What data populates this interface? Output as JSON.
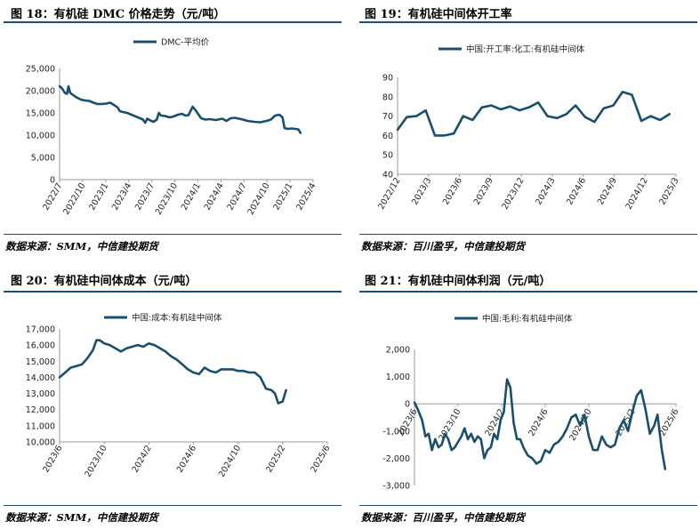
{
  "panels": [
    {
      "id": "p18",
      "title": "图 18：有机硅 DMC 价格走势（元/吨）",
      "source": "数据来源：SMM，中信建投期货"
    },
    {
      "id": "p19",
      "title": "图 19：有机硅中间体开工率",
      "source": "数据来源：百川盈孚，中信建投期货"
    },
    {
      "id": "p20",
      "title": "图 20：有机硅中间体成本（元/吨）",
      "source": "数据来源：SMM，中信建投期货"
    },
    {
      "id": "p21",
      "title": "图 21：有机硅中间体利润（元/吨）",
      "source": "数据来源：百川盈孚，中信建投期货"
    }
  ],
  "colors": {
    "series": "#1a4f6b",
    "rule": "#1f4e79",
    "axis": "#999999"
  },
  "chart_data": [
    {
      "type": "line",
      "series_name": "DMC-平均价",
      "yticks": [
        "25,000",
        "20,000",
        "15,000",
        "10,000",
        "5,000",
        "0"
      ],
      "ylim": [
        0,
        25000
      ],
      "xticks": [
        "2022/7",
        "2022/10",
        "2023/1",
        "2023/4",
        "2023/7",
        "2023/10",
        "2024/1",
        "2024/4",
        "2024/7",
        "2024/10",
        "2025/1",
        "2025/4"
      ],
      "xlim": [
        0,
        12
      ],
      "rotate_xticks": true,
      "points": [
        [
          0,
          21000
        ],
        [
          0.12,
          20500
        ],
        [
          0.25,
          19500
        ],
        [
          0.35,
          19300
        ],
        [
          0.42,
          21000
        ],
        [
          0.5,
          19500
        ],
        [
          0.65,
          19000
        ],
        [
          0.8,
          18500
        ],
        [
          1,
          18000
        ],
        [
          1.2,
          17800
        ],
        [
          1.4,
          17700
        ],
        [
          1.6,
          17300
        ],
        [
          1.8,
          17000
        ],
        [
          2,
          17000
        ],
        [
          2.2,
          17100
        ],
        [
          2.4,
          17300
        ],
        [
          2.6,
          16700
        ],
        [
          2.75,
          16200
        ],
        [
          2.85,
          15400
        ],
        [
          3,
          15200
        ],
        [
          3.2,
          15000
        ],
        [
          3.4,
          14600
        ],
        [
          3.6,
          14200
        ],
        [
          3.8,
          13800
        ],
        [
          3.95,
          13500
        ],
        [
          4.05,
          12800
        ],
        [
          4.15,
          13700
        ],
        [
          4.3,
          13300
        ],
        [
          4.45,
          13000
        ],
        [
          4.6,
          13500
        ],
        [
          4.7,
          15000
        ],
        [
          4.8,
          14400
        ],
        [
          5,
          14300
        ],
        [
          5.2,
          14000
        ],
        [
          5.4,
          14200
        ],
        [
          5.6,
          14600
        ],
        [
          5.8,
          14800
        ],
        [
          5.95,
          14400
        ],
        [
          6.1,
          14500
        ],
        [
          6.3,
          16400
        ],
        [
          6.45,
          15500
        ],
        [
          6.6,
          14500
        ],
        [
          6.7,
          13800
        ],
        [
          6.9,
          13500
        ],
        [
          7.1,
          13600
        ],
        [
          7.4,
          13400
        ],
        [
          7.7,
          13700
        ],
        [
          7.9,
          13200
        ],
        [
          8.1,
          13800
        ],
        [
          8.3,
          13900
        ],
        [
          8.6,
          13600
        ],
        [
          8.9,
          13200
        ],
        [
          9.2,
          13000
        ],
        [
          9.5,
          12900
        ],
        [
          9.8,
          13200
        ],
        [
          10,
          13500
        ],
        [
          10.2,
          14400
        ],
        [
          10.4,
          14600
        ],
        [
          10.55,
          14000
        ],
        [
          10.65,
          11600
        ],
        [
          10.8,
          11400
        ],
        [
          11,
          11500
        ],
        [
          11.15,
          11400
        ],
        [
          11.3,
          11300
        ],
        [
          11.4,
          10500
        ]
      ]
    },
    {
      "type": "line",
      "series_name": "中国:开工率:化工:有机硅中间体",
      "yticks": [
        "90",
        "80",
        "70",
        "60",
        "50",
        "40"
      ],
      "ylim": [
        40,
        90
      ],
      "xticks": [
        "2022/12",
        "2023/3",
        "2023/6",
        "2023/9",
        "2023/12",
        "2024/3",
        "2024/6",
        "2024/9",
        "2024/12",
        "2025/3"
      ],
      "xlim": [
        0,
        9.9
      ],
      "rotate_xticks": true,
      "points": [
        [
          0,
          63
        ],
        [
          0.33,
          69.5
        ],
        [
          0.67,
          70
        ],
        [
          1,
          73
        ],
        [
          1.33,
          60
        ],
        [
          1.67,
          60
        ],
        [
          2,
          61
        ],
        [
          2.33,
          70
        ],
        [
          2.67,
          68
        ],
        [
          3,
          74.5
        ],
        [
          3.33,
          75.5
        ],
        [
          3.67,
          73.5
        ],
        [
          4,
          75
        ],
        [
          4.33,
          73
        ],
        [
          4.67,
          74.5
        ],
        [
          5,
          77
        ],
        [
          5.33,
          70
        ],
        [
          5.67,
          69
        ],
        [
          6,
          71
        ],
        [
          6.33,
          75.5
        ],
        [
          6.67,
          69.5
        ],
        [
          7,
          67
        ],
        [
          7.33,
          74
        ],
        [
          7.67,
          75.5
        ],
        [
          8,
          82.5
        ],
        [
          8.33,
          81
        ],
        [
          8.67,
          67.5
        ],
        [
          9,
          70
        ],
        [
          9.33,
          68
        ],
        [
          9.67,
          71
        ]
      ]
    },
    {
      "type": "line",
      "series_name": "中国:成本:有机硅中间体",
      "yticks": [
        "17,000",
        "16,000",
        "15,000",
        "14,000",
        "13,000",
        "12,000",
        "11,000",
        "10,000"
      ],
      "ylim": [
        10000,
        17000
      ],
      "xticks": [
        "2023/6",
        "2023/10",
        "2024/2",
        "2024/6",
        "2024/10",
        "2025/2",
        "2025/6"
      ],
      "xlim": [
        0,
        24
      ],
      "rotate_xticks": true,
      "points": [
        [
          0,
          14000
        ],
        [
          0.5,
          14300
        ],
        [
          1,
          14600
        ],
        [
          1.5,
          14700
        ],
        [
          2,
          14800
        ],
        [
          2.5,
          15200
        ],
        [
          3,
          15700
        ],
        [
          3.3,
          16300
        ],
        [
          3.6,
          16300
        ],
        [
          4,
          16100
        ],
        [
          4.5,
          16000
        ],
        [
          5,
          15800
        ],
        [
          5.5,
          15600
        ],
        [
          6,
          15800
        ],
        [
          6.5,
          15900
        ],
        [
          7,
          16000
        ],
        [
          7.5,
          15900
        ],
        [
          8,
          16100
        ],
        [
          8.5,
          16000
        ],
        [
          9,
          15800
        ],
        [
          9.5,
          15600
        ],
        [
          10,
          15300
        ],
        [
          10.5,
          15100
        ],
        [
          11,
          14800
        ],
        [
          11.5,
          14500
        ],
        [
          12,
          14300
        ],
        [
          12.5,
          14200
        ],
        [
          13,
          14600
        ],
        [
          13.5,
          14400
        ],
        [
          14,
          14300
        ],
        [
          14.5,
          14500
        ],
        [
          15,
          14500
        ],
        [
          15.5,
          14500
        ],
        [
          16,
          14400
        ],
        [
          16.5,
          14400
        ],
        [
          17,
          14300
        ],
        [
          17.5,
          14300
        ],
        [
          18,
          14000
        ],
        [
          18.5,
          13300
        ],
        [
          19,
          13200
        ],
        [
          19.3,
          13000
        ],
        [
          19.6,
          12400
        ],
        [
          20,
          12500
        ],
        [
          20.3,
          13200
        ]
      ]
    },
    {
      "type": "line",
      "series_name": "中国:毛利:有机硅中间体",
      "yticks": [
        "2,000",
        "1,000",
        "0",
        "-1,000",
        "-2,000",
        "-3,000"
      ],
      "ylim": [
        -3000,
        2000
      ],
      "xticks": [
        "2023/6",
        "2023/10",
        "2024/2",
        "2024/6",
        "2024/10",
        "2025/2",
        "2025/6"
      ],
      "xlim": [
        0,
        24
      ],
      "rotate_xticks": true,
      "points": [
        [
          0,
          50
        ],
        [
          0.3,
          -200
        ],
        [
          0.7,
          -600
        ],
        [
          1,
          -1200
        ],
        [
          1.3,
          -1100
        ],
        [
          1.6,
          -1700
        ],
        [
          1.9,
          -1300
        ],
        [
          2.2,
          -1600
        ],
        [
          2.5,
          -1500
        ],
        [
          2.8,
          -1100
        ],
        [
          3.1,
          -1300
        ],
        [
          3.4,
          -1700
        ],
        [
          3.7,
          -1600
        ],
        [
          4,
          -1400
        ],
        [
          4.3,
          -1200
        ],
        [
          4.6,
          -900
        ],
        [
          4.9,
          -1300
        ],
        [
          5.2,
          -1100
        ],
        [
          5.5,
          -1400
        ],
        [
          5.8,
          -1200
        ],
        [
          6.1,
          -1300
        ],
        [
          6.4,
          -2000
        ],
        [
          6.7,
          -1700
        ],
        [
          7,
          -1600
        ],
        [
          7.3,
          -1100
        ],
        [
          7.6,
          -1300
        ],
        [
          7.9,
          -600
        ],
        [
          8.2,
          -300
        ],
        [
          8.5,
          900
        ],
        [
          8.8,
          600
        ],
        [
          9.1,
          -700
        ],
        [
          9.4,
          -1300
        ],
        [
          9.7,
          -1300
        ],
        [
          10,
          -1600
        ],
        [
          10.4,
          -1900
        ],
        [
          10.8,
          -2000
        ],
        [
          11.2,
          -2200
        ],
        [
          11.6,
          -2100
        ],
        [
          12,
          -1700
        ],
        [
          12.4,
          -1800
        ],
        [
          12.8,
          -1500
        ],
        [
          13.2,
          -1400
        ],
        [
          13.6,
          -1200
        ],
        [
          14,
          -900
        ],
        [
          14.4,
          -500
        ],
        [
          14.8,
          -400
        ],
        [
          15.2,
          -800
        ],
        [
          15.6,
          -400
        ],
        [
          16,
          -1200
        ],
        [
          16.4,
          -1700
        ],
        [
          16.8,
          -1700
        ],
        [
          17.2,
          -1200
        ],
        [
          17.6,
          -1500
        ],
        [
          18,
          -1600
        ],
        [
          18.4,
          -1500
        ],
        [
          18.8,
          -900
        ],
        [
          19.2,
          -600
        ],
        [
          19.6,
          -1000
        ],
        [
          20,
          -300
        ],
        [
          20.4,
          300
        ],
        [
          20.8,
          500
        ],
        [
          21.2,
          -200
        ],
        [
          21.6,
          -1100
        ],
        [
          22,
          -800
        ],
        [
          22.3,
          -400
        ],
        [
          22.7,
          -1700
        ],
        [
          23,
          -2400
        ]
      ]
    }
  ]
}
